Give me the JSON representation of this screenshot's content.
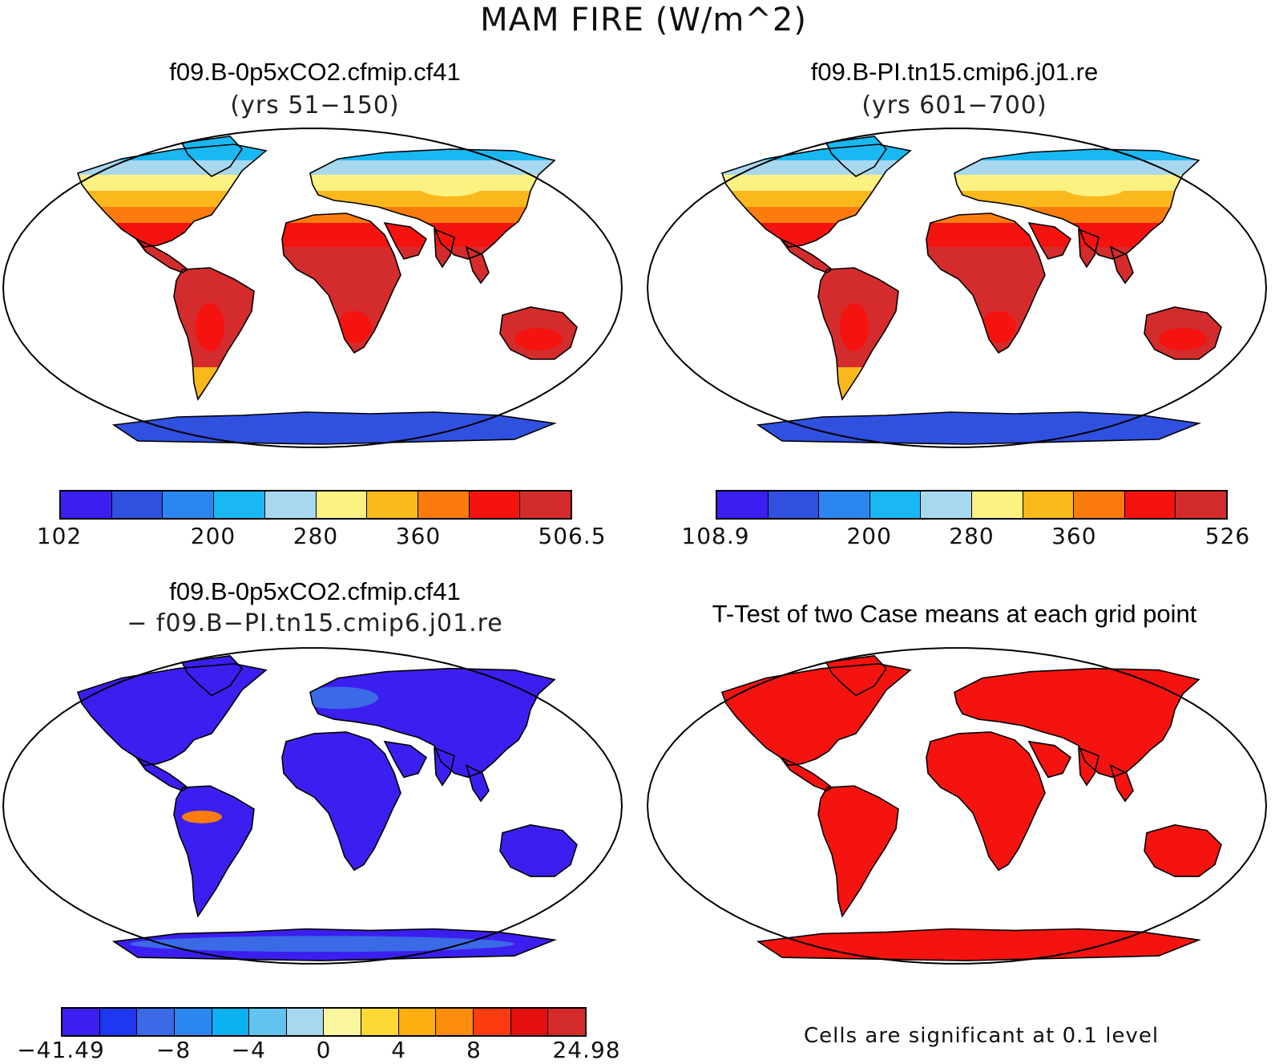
{
  "figure": {
    "title": "MAM FIRE (W/m^2)"
  },
  "panels": [
    {
      "id": "case1",
      "title": "f09.B-0p5xCO2.cfmip.cf41",
      "subtitle": "(yrs 51−150)",
      "colorbar": {
        "colors": [
          "#3b1ff0",
          "#3050e0",
          "#2a87f0",
          "#1ab8f2",
          "#a8d8f0",
          "#fcf282",
          "#fbb81c",
          "#fb7c0c",
          "#f5130f",
          "#d42c2c"
        ],
        "ticks": [
          "102",
          "200",
          "280",
          "360",
          "506.5"
        ],
        "tick_positions": [
          0,
          3,
          5,
          7,
          10
        ]
      }
    },
    {
      "id": "case2",
      "title": "f09.B-PI.tn15.cmip6.j01.re",
      "subtitle": "(yrs 601−700)",
      "colorbar": {
        "colors": [
          "#3b1ff0",
          "#3050e0",
          "#2a87f0",
          "#1ab8f2",
          "#a8d8f0",
          "#fcf282",
          "#fbb81c",
          "#fb7c0c",
          "#f5130f",
          "#d42c2c"
        ],
        "ticks": [
          "108.9",
          "200",
          "280",
          "360",
          "526"
        ],
        "tick_positions": [
          0,
          3,
          5,
          7,
          10
        ]
      }
    },
    {
      "id": "difference",
      "title": "f09.B-0p5xCO2.cfmip.cf41",
      "subtitle": "− f09.B−PI.tn15.cmip6.j01.re",
      "colorbar": {
        "colors": [
          "#3b1ff0",
          "#1e37f0",
          "#3a6ae6",
          "#2a87f0",
          "#0ab0f0",
          "#62c3ef",
          "#a8d8f0",
          "#fcf5a0",
          "#fcd834",
          "#fbaf10",
          "#fb8c0c",
          "#fb3c10",
          "#e40f0f",
          "#d42c2c"
        ],
        "ticks": [
          "−41.49",
          "−8",
          "−4",
          "0",
          "4",
          "8",
          "24.98"
        ],
        "tick_positions": [
          0,
          3,
          5,
          7,
          9,
          11,
          14
        ]
      }
    },
    {
      "id": "ttest",
      "title": "T-Test of two Case means at each grid point",
      "footnote": "Cells are significant at 0.1 level"
    }
  ]
}
